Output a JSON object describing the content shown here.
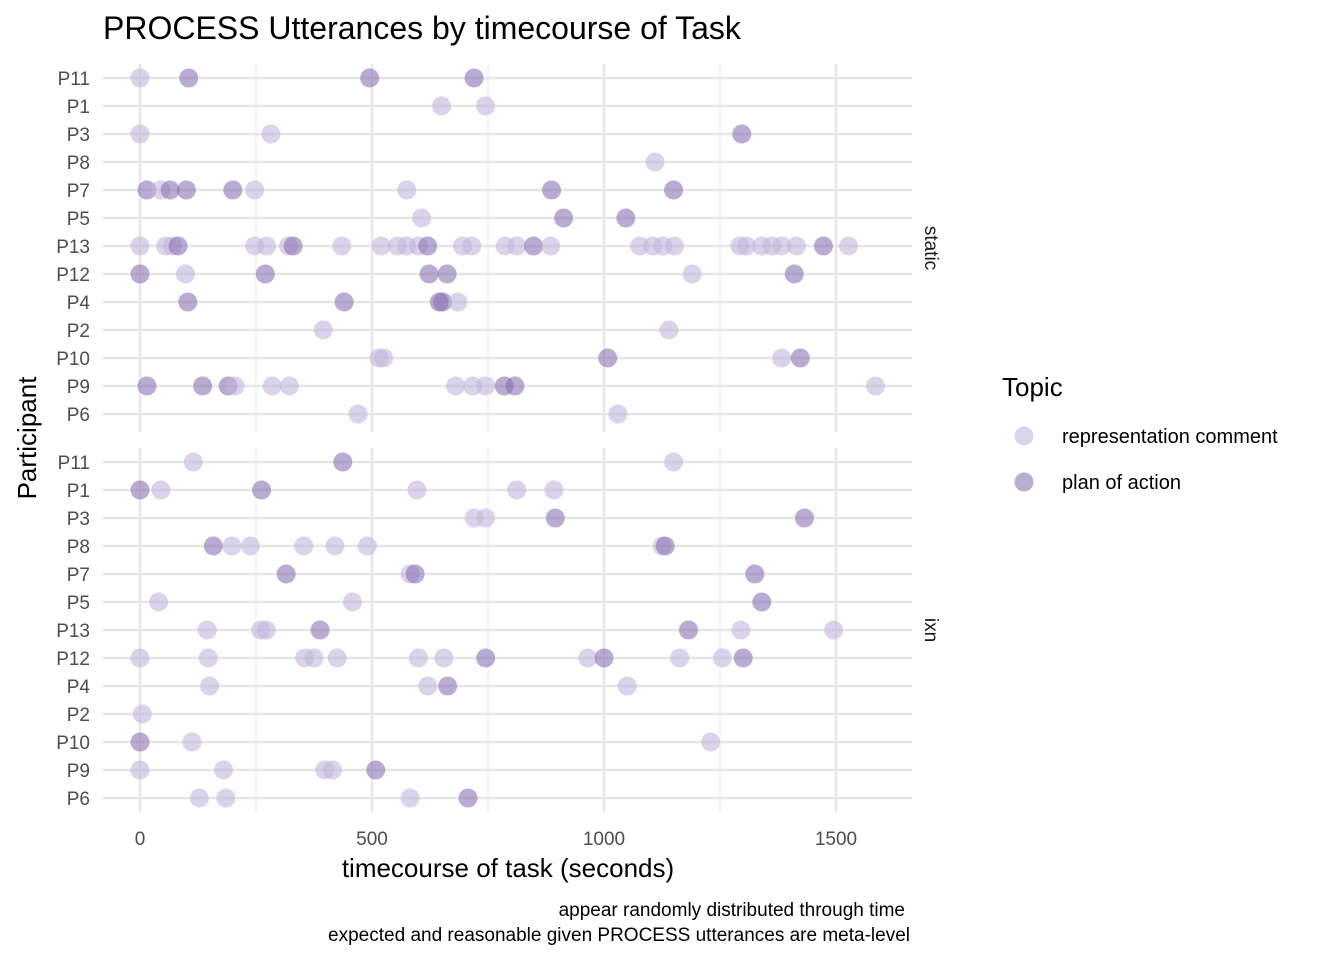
{
  "chart_data": {
    "type": "scatter",
    "title": "PROCESS Utterances by timecourse of Task",
    "xlabel": "timecourse of task (seconds)",
    "ylabel": "Participant",
    "xlim": [
      -80,
      1670
    ],
    "x_ticks": [
      0,
      500,
      1000,
      1500
    ],
    "x_tick_labels": [
      "0",
      "500",
      "1000",
      "1500"
    ],
    "grid": true,
    "participants": [
      "P11",
      "P1",
      "P3",
      "P8",
      "P7",
      "P5",
      "P13",
      "P12",
      "P4",
      "P2",
      "P10",
      "P9",
      "P6"
    ],
    "caption_lines": [
      "appear randomly distributed through time",
      "expected and reasonable given PROCESS utterances are meta-level"
    ],
    "legend": {
      "title": "Topic",
      "position": "right",
      "entries": [
        {
          "key": "representation comment",
          "label": "representation comment",
          "color": "#c2b5db",
          "opacity": 0.6
        },
        {
          "key": "plan of action",
          "label": "plan of action",
          "color": "#8a73b3",
          "opacity": 0.6
        }
      ]
    },
    "facets": [
      {
        "name": "static",
        "points": [
          {
            "p": "P11",
            "x": 0,
            "topic": "representation comment"
          },
          {
            "p": "P11",
            "x": 105,
            "topic": "plan of action"
          },
          {
            "p": "P11",
            "x": 495,
            "topic": "plan of action"
          },
          {
            "p": "P11",
            "x": 720,
            "topic": "plan of action"
          },
          {
            "p": "P1",
            "x": 650,
            "topic": "representation comment"
          },
          {
            "p": "P1",
            "x": 745,
            "topic": "representation comment"
          },
          {
            "p": "P3",
            "x": 0,
            "topic": "representation comment"
          },
          {
            "p": "P3",
            "x": 282,
            "topic": "representation comment"
          },
          {
            "p": "P3",
            "x": 1297,
            "topic": "plan of action"
          },
          {
            "p": "P8",
            "x": 1110,
            "topic": "representation comment"
          },
          {
            "p": "P7",
            "x": 15,
            "topic": "plan of action"
          },
          {
            "p": "P7",
            "x": 45,
            "topic": "representation comment"
          },
          {
            "p": "P7",
            "x": 65,
            "topic": "plan of action"
          },
          {
            "p": "P7",
            "x": 100,
            "topic": "plan of action"
          },
          {
            "p": "P7",
            "x": 200,
            "topic": "plan of action"
          },
          {
            "p": "P7",
            "x": 247,
            "topic": "representation comment"
          },
          {
            "p": "P7",
            "x": 575,
            "topic": "representation comment"
          },
          {
            "p": "P7",
            "x": 887,
            "topic": "plan of action"
          },
          {
            "p": "P7",
            "x": 1150,
            "topic": "plan of action"
          },
          {
            "p": "P5",
            "x": 607,
            "topic": "representation comment"
          },
          {
            "p": "P5",
            "x": 913,
            "topic": "plan of action"
          },
          {
            "p": "P5",
            "x": 1047,
            "topic": "plan of action"
          },
          {
            "p": "P13",
            "x": 0,
            "topic": "representation comment"
          },
          {
            "p": "P13",
            "x": 55,
            "topic": "representation comment"
          },
          {
            "p": "P13",
            "x": 70,
            "topic": "representation comment"
          },
          {
            "p": "P13",
            "x": 82,
            "topic": "plan of action"
          },
          {
            "p": "P13",
            "x": 247,
            "topic": "representation comment"
          },
          {
            "p": "P13",
            "x": 273,
            "topic": "representation comment"
          },
          {
            "p": "P13",
            "x": 320,
            "topic": "representation comment"
          },
          {
            "p": "P13",
            "x": 330,
            "topic": "plan of action"
          },
          {
            "p": "P13",
            "x": 435,
            "topic": "representation comment"
          },
          {
            "p": "P13",
            "x": 520,
            "topic": "representation comment"
          },
          {
            "p": "P13",
            "x": 555,
            "topic": "representation comment"
          },
          {
            "p": "P13",
            "x": 575,
            "topic": "representation comment"
          },
          {
            "p": "P13",
            "x": 600,
            "topic": "representation comment"
          },
          {
            "p": "P13",
            "x": 620,
            "topic": "plan of action"
          },
          {
            "p": "P13",
            "x": 695,
            "topic": "representation comment"
          },
          {
            "p": "P13",
            "x": 715,
            "topic": "representation comment"
          },
          {
            "p": "P13",
            "x": 787,
            "topic": "representation comment"
          },
          {
            "p": "P13",
            "x": 812,
            "topic": "representation comment"
          },
          {
            "p": "P13",
            "x": 848,
            "topic": "plan of action"
          },
          {
            "p": "P13",
            "x": 885,
            "topic": "representation comment"
          },
          {
            "p": "P13",
            "x": 1077,
            "topic": "representation comment"
          },
          {
            "p": "P13",
            "x": 1105,
            "topic": "representation comment"
          },
          {
            "p": "P13",
            "x": 1127,
            "topic": "representation comment"
          },
          {
            "p": "P13",
            "x": 1152,
            "topic": "representation comment"
          },
          {
            "p": "P13",
            "x": 1293,
            "topic": "representation comment"
          },
          {
            "p": "P13",
            "x": 1307,
            "topic": "representation comment"
          },
          {
            "p": "P13",
            "x": 1340,
            "topic": "representation comment"
          },
          {
            "p": "P13",
            "x": 1362,
            "topic": "representation comment"
          },
          {
            "p": "P13",
            "x": 1383,
            "topic": "representation comment"
          },
          {
            "p": "P13",
            "x": 1415,
            "topic": "representation comment"
          },
          {
            "p": "P13",
            "x": 1473,
            "topic": "plan of action"
          },
          {
            "p": "P13",
            "x": 1527,
            "topic": "representation comment"
          },
          {
            "p": "P12",
            "x": 0,
            "topic": "plan of action"
          },
          {
            "p": "P12",
            "x": 98,
            "topic": "representation comment"
          },
          {
            "p": "P12",
            "x": 270,
            "topic": "plan of action"
          },
          {
            "p": "P12",
            "x": 623,
            "topic": "plan of action"
          },
          {
            "p": "P12",
            "x": 662,
            "topic": "plan of action"
          },
          {
            "p": "P12",
            "x": 1190,
            "topic": "representation comment"
          },
          {
            "p": "P12",
            "x": 1410,
            "topic": "plan of action"
          },
          {
            "p": "P4",
            "x": 103,
            "topic": "plan of action"
          },
          {
            "p": "P4",
            "x": 440,
            "topic": "plan of action"
          },
          {
            "p": "P4",
            "x": 645,
            "topic": "plan of action"
          },
          {
            "p": "P4",
            "x": 652,
            "topic": "plan of action"
          },
          {
            "p": "P4",
            "x": 685,
            "topic": "representation comment"
          },
          {
            "p": "P2",
            "x": 395,
            "topic": "representation comment"
          },
          {
            "p": "P2",
            "x": 1140,
            "topic": "representation comment"
          },
          {
            "p": "P10",
            "x": 515,
            "topic": "representation comment"
          },
          {
            "p": "P10",
            "x": 525,
            "topic": "representation comment"
          },
          {
            "p": "P10",
            "x": 1008,
            "topic": "plan of action"
          },
          {
            "p": "P10",
            "x": 1383,
            "topic": "representation comment"
          },
          {
            "p": "P10",
            "x": 1423,
            "topic": "plan of action"
          },
          {
            "p": "P9",
            "x": 15,
            "topic": "plan of action"
          },
          {
            "p": "P9",
            "x": 135,
            "topic": "plan of action"
          },
          {
            "p": "P9",
            "x": 190,
            "topic": "plan of action"
          },
          {
            "p": "P9",
            "x": 205,
            "topic": "representation comment"
          },
          {
            "p": "P9",
            "x": 285,
            "topic": "representation comment"
          },
          {
            "p": "P9",
            "x": 322,
            "topic": "representation comment"
          },
          {
            "p": "P9",
            "x": 680,
            "topic": "representation comment"
          },
          {
            "p": "P9",
            "x": 717,
            "topic": "representation comment"
          },
          {
            "p": "P9",
            "x": 745,
            "topic": "representation comment"
          },
          {
            "p": "P9",
            "x": 785,
            "topic": "plan of action"
          },
          {
            "p": "P9",
            "x": 808,
            "topic": "plan of action"
          },
          {
            "p": "P9",
            "x": 1585,
            "topic": "representation comment"
          },
          {
            "p": "P6",
            "x": 470,
            "topic": "representation comment"
          },
          {
            "p": "P6",
            "x": 1030,
            "topic": "representation comment"
          }
        ]
      },
      {
        "name": "ixn",
        "points": [
          {
            "p": "P11",
            "x": 115,
            "topic": "representation comment"
          },
          {
            "p": "P11",
            "x": 437,
            "topic": "plan of action"
          },
          {
            "p": "P11",
            "x": 1150,
            "topic": "representation comment"
          },
          {
            "p": "P1",
            "x": 0,
            "topic": "plan of action"
          },
          {
            "p": "P1",
            "x": 45,
            "topic": "representation comment"
          },
          {
            "p": "P1",
            "x": 262,
            "topic": "plan of action"
          },
          {
            "p": "P1",
            "x": 597,
            "topic": "representation comment"
          },
          {
            "p": "P1",
            "x": 812,
            "topic": "representation comment"
          },
          {
            "p": "P1",
            "x": 892,
            "topic": "representation comment"
          },
          {
            "p": "P3",
            "x": 720,
            "topic": "representation comment"
          },
          {
            "p": "P3",
            "x": 745,
            "topic": "representation comment"
          },
          {
            "p": "P3",
            "x": 895,
            "topic": "plan of action"
          },
          {
            "p": "P3",
            "x": 1432,
            "topic": "plan of action"
          },
          {
            "p": "P8",
            "x": 158,
            "topic": "plan of action"
          },
          {
            "p": "P8",
            "x": 198,
            "topic": "representation comment"
          },
          {
            "p": "P8",
            "x": 238,
            "topic": "representation comment"
          },
          {
            "p": "P8",
            "x": 353,
            "topic": "representation comment"
          },
          {
            "p": "P8",
            "x": 420,
            "topic": "representation comment"
          },
          {
            "p": "P8",
            "x": 490,
            "topic": "representation comment"
          },
          {
            "p": "P8",
            "x": 1125,
            "topic": "representation comment"
          },
          {
            "p": "P8",
            "x": 1132,
            "topic": "plan of action"
          },
          {
            "p": "P7",
            "x": 315,
            "topic": "plan of action"
          },
          {
            "p": "P7",
            "x": 582,
            "topic": "representation comment"
          },
          {
            "p": "P7",
            "x": 593,
            "topic": "plan of action"
          },
          {
            "p": "P7",
            "x": 1325,
            "topic": "plan of action"
          },
          {
            "p": "P5",
            "x": 40,
            "topic": "representation comment"
          },
          {
            "p": "P5",
            "x": 458,
            "topic": "representation comment"
          },
          {
            "p": "P5",
            "x": 1340,
            "topic": "plan of action"
          },
          {
            "p": "P13",
            "x": 145,
            "topic": "representation comment"
          },
          {
            "p": "P13",
            "x": 260,
            "topic": "representation comment"
          },
          {
            "p": "P13",
            "x": 272,
            "topic": "representation comment"
          },
          {
            "p": "P13",
            "x": 388,
            "topic": "plan of action"
          },
          {
            "p": "P13",
            "x": 1182,
            "topic": "plan of action"
          },
          {
            "p": "P13",
            "x": 1295,
            "topic": "representation comment"
          },
          {
            "p": "P13",
            "x": 1495,
            "topic": "representation comment"
          },
          {
            "p": "P12",
            "x": 0,
            "topic": "representation comment"
          },
          {
            "p": "P12",
            "x": 147,
            "topic": "representation comment"
          },
          {
            "p": "P12",
            "x": 355,
            "topic": "representation comment"
          },
          {
            "p": "P12",
            "x": 375,
            "topic": "representation comment"
          },
          {
            "p": "P12",
            "x": 425,
            "topic": "representation comment"
          },
          {
            "p": "P12",
            "x": 600,
            "topic": "representation comment"
          },
          {
            "p": "P12",
            "x": 655,
            "topic": "representation comment"
          },
          {
            "p": "P12",
            "x": 745,
            "topic": "plan of action"
          },
          {
            "p": "P12",
            "x": 965,
            "topic": "representation comment"
          },
          {
            "p": "P12",
            "x": 1000,
            "topic": "plan of action"
          },
          {
            "p": "P12",
            "x": 1163,
            "topic": "representation comment"
          },
          {
            "p": "P12",
            "x": 1255,
            "topic": "representation comment"
          },
          {
            "p": "P12",
            "x": 1300,
            "topic": "plan of action"
          },
          {
            "p": "P4",
            "x": 150,
            "topic": "representation comment"
          },
          {
            "p": "P4",
            "x": 620,
            "topic": "representation comment"
          },
          {
            "p": "P4",
            "x": 663,
            "topic": "plan of action"
          },
          {
            "p": "P4",
            "x": 1050,
            "topic": "representation comment"
          },
          {
            "p": "P2",
            "x": 5,
            "topic": "representation comment"
          },
          {
            "p": "P10",
            "x": 0,
            "topic": "plan of action"
          },
          {
            "p": "P10",
            "x": 112,
            "topic": "representation comment"
          },
          {
            "p": "P10",
            "x": 1230,
            "topic": "representation comment"
          },
          {
            "p": "P9",
            "x": 0,
            "topic": "representation comment"
          },
          {
            "p": "P9",
            "x": 180,
            "topic": "representation comment"
          },
          {
            "p": "P9",
            "x": 398,
            "topic": "representation comment"
          },
          {
            "p": "P9",
            "x": 415,
            "topic": "representation comment"
          },
          {
            "p": "P9",
            "x": 508,
            "topic": "plan of action"
          },
          {
            "p": "P6",
            "x": 128,
            "topic": "representation comment"
          },
          {
            "p": "P6",
            "x": 185,
            "topic": "representation comment"
          },
          {
            "p": "P6",
            "x": 582,
            "topic": "representation comment"
          },
          {
            "p": "P6",
            "x": 707,
            "topic": "plan of action"
          }
        ]
      }
    ]
  }
}
